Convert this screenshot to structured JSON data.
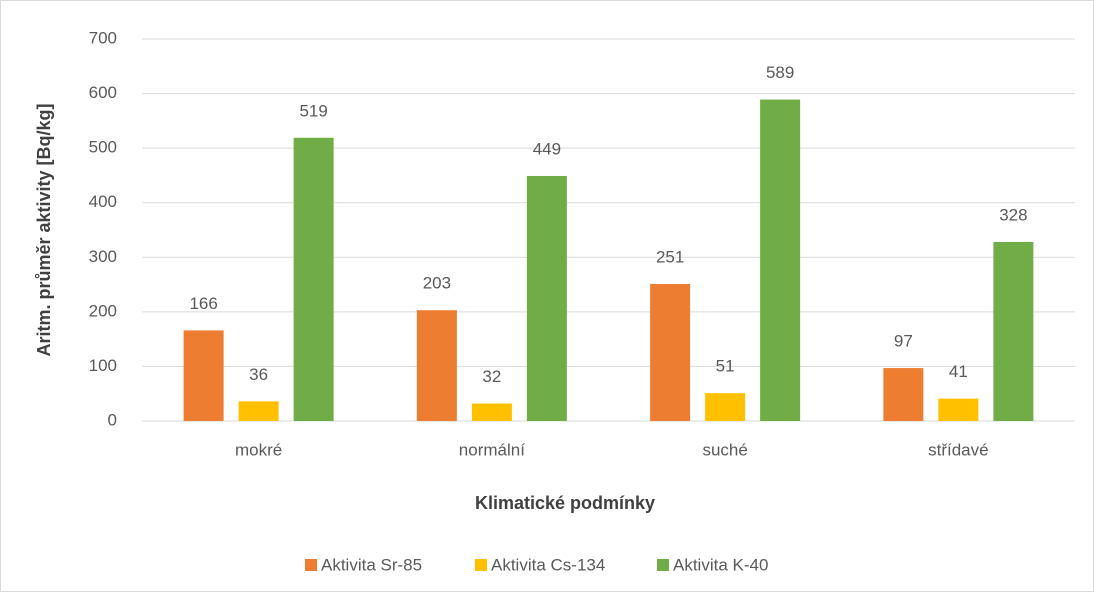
{
  "chart_data": {
    "type": "bar",
    "xlabel": "Klimatické podmínky",
    "ylabel": "Aritm. průměr aktivity [Bq/kg]",
    "categories": [
      "mokré",
      "normální",
      "suché",
      "střídavé"
    ],
    "series": [
      {
        "name": "Aktivita Sr-85",
        "color": "#ed7d31",
        "values": [
          166,
          203,
          251,
          97
        ]
      },
      {
        "name": "Aktivita Cs-134",
        "color": "#ffc000",
        "values": [
          36,
          32,
          51,
          41
        ]
      },
      {
        "name": "Aktivita K-40",
        "color": "#70ad47",
        "values": [
          519,
          449,
          589,
          328
        ]
      }
    ],
    "ylim": [
      0,
      700
    ],
    "yticks": [
      0,
      100,
      200,
      300,
      400,
      500,
      600,
      700
    ],
    "grid": true,
    "legend": "bottom"
  }
}
